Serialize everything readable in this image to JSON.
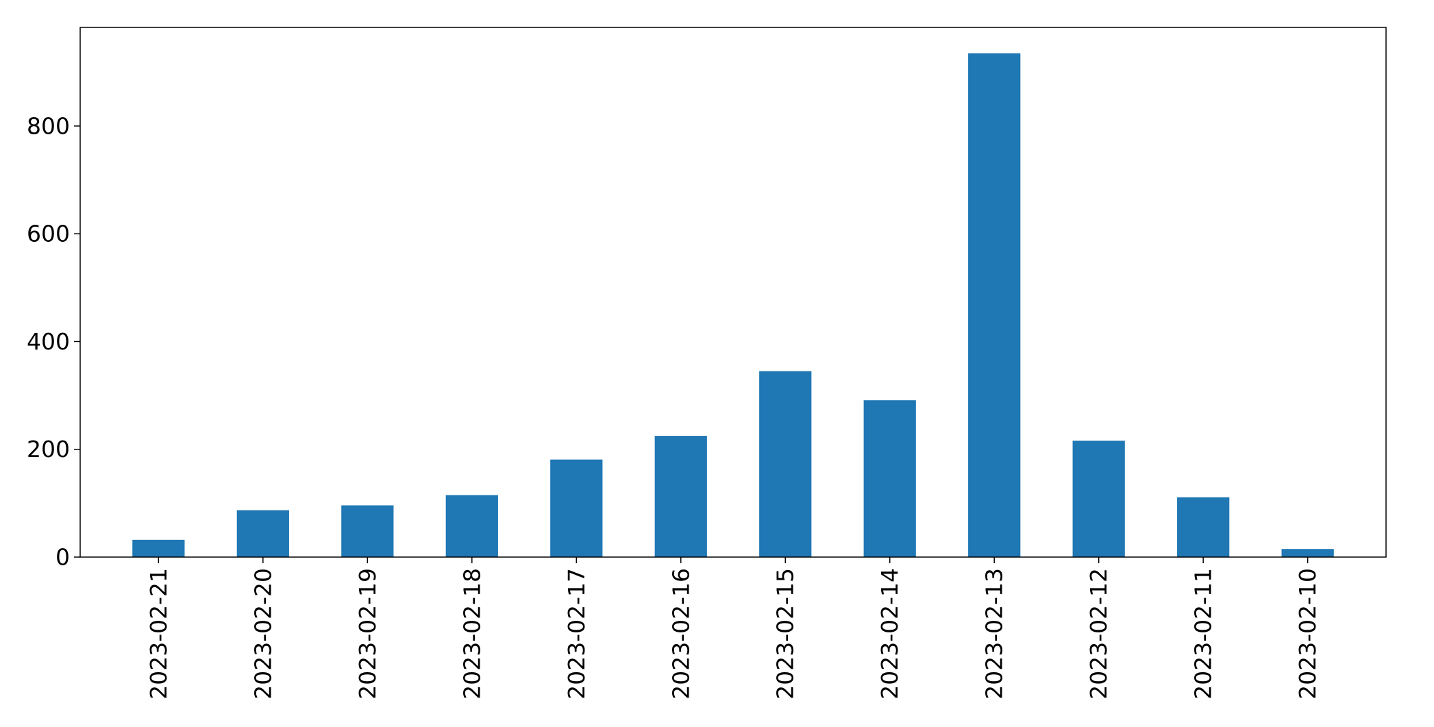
{
  "chart_data": {
    "type": "bar",
    "title": "",
    "xlabel": "",
    "ylabel": "",
    "categories": [
      "2023-02-21",
      "2023-02-20",
      "2023-02-19",
      "2023-02-18",
      "2023-02-17",
      "2023-02-16",
      "2023-02-15",
      "2023-02-14",
      "2023-02-13",
      "2023-02-12",
      "2023-02-11",
      "2023-02-10"
    ],
    "values": [
      32,
      87,
      96,
      115,
      181,
      225,
      345,
      291,
      935,
      216,
      111,
      15
    ],
    "ylim": [
      0,
      983
    ],
    "yticks": [
      0,
      200,
      400,
      600,
      800
    ],
    "yticklabels": [
      "0",
      "200",
      "400",
      "600",
      "800"
    ],
    "bar_color": "#1f77b4",
    "grid": false,
    "legend": "none"
  }
}
